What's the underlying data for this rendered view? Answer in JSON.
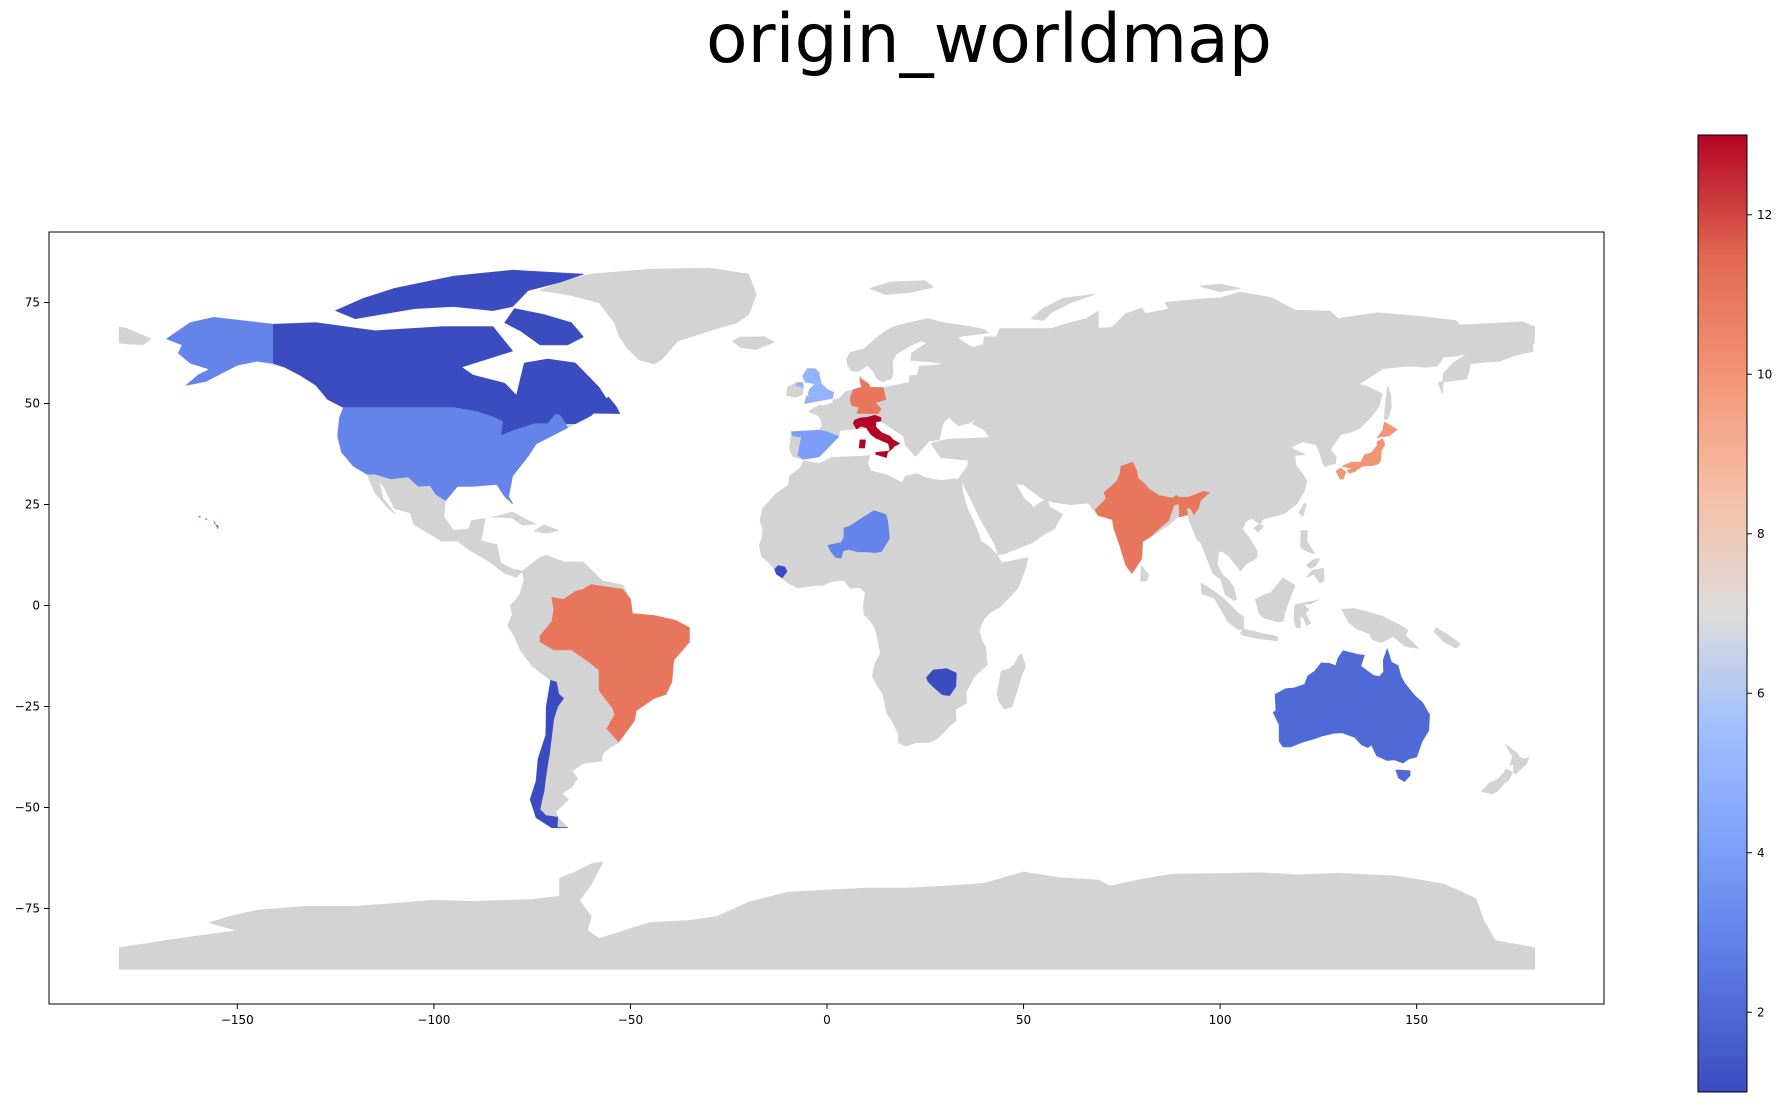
{
  "title": "origin_worldmap",
  "chart_data": {
    "type": "choropleth",
    "title": "origin_worldmap",
    "xlabel": "",
    "ylabel": "",
    "xlim": [
      -198,
      198
    ],
    "ylim": [
      -98,
      92
    ],
    "x_ticks": [
      -150,
      -100,
      -50,
      0,
      50,
      100,
      150
    ],
    "y_ticks": [
      75,
      50,
      25,
      0,
      -25,
      -50,
      -75
    ],
    "missing_color": "#d3d3d3",
    "colormap": "coolwarm",
    "color_range": [
      1,
      13
    ],
    "colorbar_ticks": [
      2,
      4,
      6,
      8,
      10,
      12
    ],
    "values": [
      {
        "name": "Canada",
        "value": 1
      },
      {
        "name": "United States",
        "value": 3
      },
      {
        "name": "Brazil",
        "value": 11
      },
      {
        "name": "Chile",
        "value": 1
      },
      {
        "name": "United Kingdom",
        "value": 5
      },
      {
        "name": "Spain",
        "value": 4
      },
      {
        "name": "Germany",
        "value": 11
      },
      {
        "name": "Italy",
        "value": 13
      },
      {
        "name": "Niger",
        "value": 3
      },
      {
        "name": "Sierra Leone",
        "value": 1
      },
      {
        "name": "Zimbabwe",
        "value": 1
      },
      {
        "name": "India",
        "value": 11
      },
      {
        "name": "Japan",
        "value": 10
      },
      {
        "name": "Australia",
        "value": 2
      }
    ]
  }
}
